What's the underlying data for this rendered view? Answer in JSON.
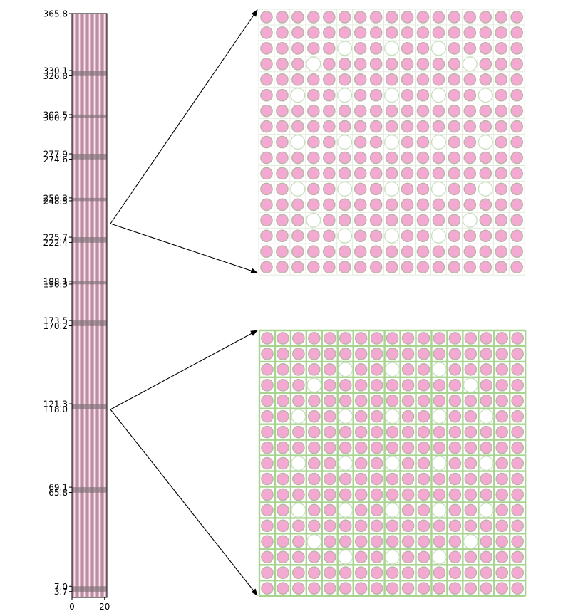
{
  "assembly_axis": {
    "y_ticks": [
      "365.8",
      "330.1",
      "326.8",
      "302.5",
      "300.7",
      "277.9",
      "274.6",
      "250.3",
      "248.5",
      "225.7",
      "222.4",
      "198.1",
      "196.3",
      "173.5",
      "170.2",
      "121.3",
      "118.0",
      "69.1",
      "65.8",
      "7.0",
      "3.7"
    ],
    "y_values": [
      365.8,
      330.1,
      326.8,
      302.5,
      300.7,
      277.9,
      274.6,
      250.3,
      248.5,
      225.7,
      222.4,
      198.1,
      196.3,
      173.5,
      170.2,
      121.3,
      118.0,
      69.1,
      65.8,
      7.0,
      3.7
    ],
    "y_range": [
      0,
      365.8
    ],
    "x_ticks": [
      "0",
      "20"
    ],
    "x_values": [
      0,
      20
    ],
    "x_range": [
      0,
      21.42
    ]
  },
  "upper_lattice": {
    "size": 17,
    "water_positions": [
      [
        2,
        5
      ],
      [
        2,
        8
      ],
      [
        2,
        11
      ],
      [
        3,
        3
      ],
      [
        3,
        13
      ],
      [
        5,
        2
      ],
      [
        5,
        5
      ],
      [
        5,
        8
      ],
      [
        5,
        11
      ],
      [
        5,
        14
      ],
      [
        8,
        2
      ],
      [
        8,
        5
      ],
      [
        8,
        8
      ],
      [
        8,
        11
      ],
      [
        8,
        14
      ],
      [
        11,
        2
      ],
      [
        11,
        5
      ],
      [
        11,
        8
      ],
      [
        11,
        11
      ],
      [
        11,
        14
      ],
      [
        13,
        3
      ],
      [
        13,
        13
      ],
      [
        14,
        5
      ],
      [
        14,
        8
      ],
      [
        14,
        11
      ]
    ],
    "grid_spacers": false
  },
  "lower_lattice": {
    "size": 17,
    "water_positions": [
      [
        2,
        5
      ],
      [
        2,
        8
      ],
      [
        2,
        11
      ],
      [
        3,
        3
      ],
      [
        3,
        13
      ],
      [
        5,
        2
      ],
      [
        5,
        5
      ],
      [
        5,
        8
      ],
      [
        5,
        11
      ],
      [
        5,
        14
      ],
      [
        8,
        2
      ],
      [
        8,
        5
      ],
      [
        8,
        8
      ],
      [
        8,
        11
      ],
      [
        8,
        14
      ],
      [
        11,
        2
      ],
      [
        11,
        5
      ],
      [
        11,
        8
      ],
      [
        11,
        11
      ],
      [
        11,
        14
      ],
      [
        13,
        3
      ],
      [
        13,
        13
      ],
      [
        14,
        5
      ],
      [
        14,
        8
      ],
      [
        14,
        11
      ]
    ],
    "grid_spacers": true
  },
  "colors": {
    "fuel_fill": "#f4a9d2",
    "fuel_clad": "#b7b5a4",
    "water_ring": "#c8dfbe",
    "grid_line_light": "#e2e8dc",
    "grid_line_spacer": "#a7d48f",
    "axial_fill": "#d9a7bd",
    "axial_line": "#8a6c78"
  }
}
